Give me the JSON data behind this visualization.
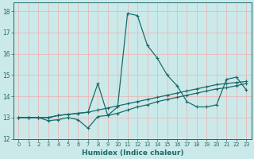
{
  "xlabel": "Humidex (Indice chaleur)",
  "xlim": [
    -0.5,
    23.5
  ],
  "ylim": [
    12,
    18.4
  ],
  "yticks": [
    12,
    13,
    14,
    15,
    16,
    17,
    18
  ],
  "xticks": [
    0,
    1,
    2,
    3,
    4,
    5,
    6,
    7,
    8,
    9,
    10,
    11,
    12,
    13,
    14,
    15,
    16,
    17,
    18,
    19,
    20,
    21,
    22,
    23
  ],
  "background_color": "#cce9e9",
  "grid_color": "#e8b8b8",
  "line_color": "#1a6b6b",
  "line1_x": [
    0,
    1,
    2,
    3,
    4,
    5,
    6,
    7,
    8,
    9,
    10,
    11,
    12,
    13,
    14,
    15,
    16,
    17,
    18,
    19,
    20,
    21,
    22,
    23
  ],
  "line1_y": [
    13.0,
    13.0,
    13.0,
    13.0,
    13.1,
    13.15,
    13.2,
    13.25,
    13.35,
    13.45,
    13.55,
    13.65,
    13.75,
    13.85,
    13.95,
    14.05,
    14.15,
    14.25,
    14.35,
    14.45,
    14.55,
    14.6,
    14.65,
    14.7
  ],
  "line2_x": [
    0,
    1,
    2,
    3,
    4,
    5,
    6,
    7,
    8,
    9,
    10,
    11,
    12,
    13,
    14,
    15,
    16,
    17,
    18,
    19,
    20,
    21,
    22,
    23
  ],
  "line2_y": [
    13.0,
    13.0,
    13.0,
    12.85,
    12.9,
    13.0,
    12.9,
    12.5,
    13.05,
    13.1,
    13.5,
    17.9,
    17.8,
    16.4,
    15.8,
    15.0,
    14.5,
    13.75,
    13.5,
    13.5,
    13.6,
    14.8,
    14.9,
    14.3
  ],
  "line3_x": [
    0,
    1,
    2,
    3,
    4,
    5,
    6,
    7,
    8,
    9,
    10,
    11,
    12,
    13,
    14,
    15,
    16,
    17,
    18,
    19,
    20,
    21,
    22,
    23
  ],
  "line3_y": [
    13.0,
    13.0,
    13.0,
    13.0,
    13.1,
    13.15,
    13.2,
    13.25,
    14.6,
    13.1,
    13.2,
    13.35,
    13.5,
    13.6,
    13.75,
    13.85,
    13.95,
    14.05,
    14.15,
    14.25,
    14.35,
    14.4,
    14.5,
    14.6
  ]
}
